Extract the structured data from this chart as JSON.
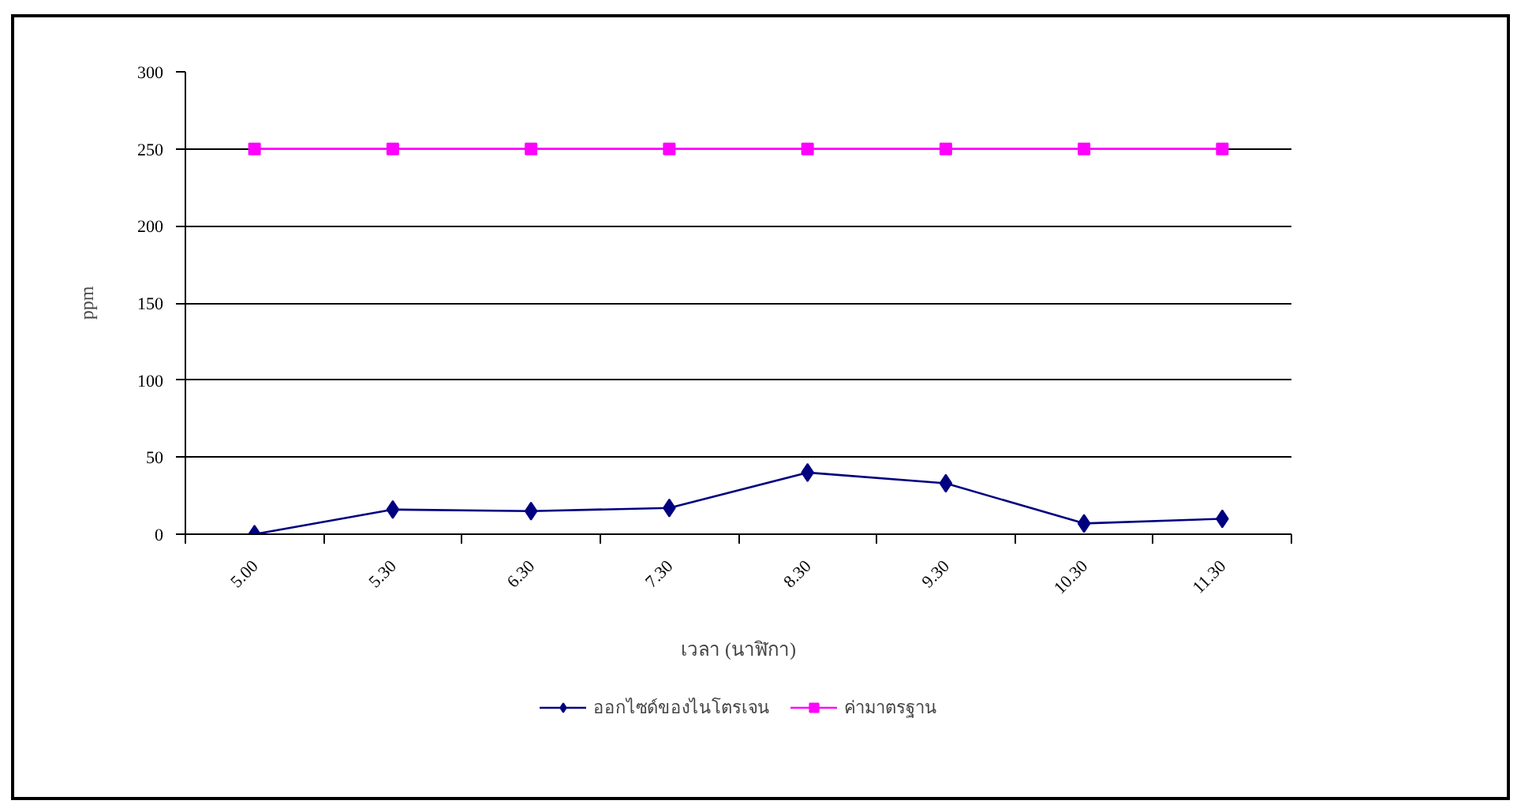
{
  "chart_data": {
    "type": "line",
    "xlabel": "เวลา (นาฬิกา)",
    "ylabel": "ppm",
    "categories": [
      "5.00",
      "5.30",
      "6.30",
      "7.30",
      "8.30",
      "9.30",
      "10.30",
      "11.30"
    ],
    "series": [
      {
        "name": "ออกไซด์ของไนโตรเจน",
        "color": "#000080",
        "marker": "diamond",
        "values": [
          0,
          16,
          15,
          17,
          40,
          33,
          7,
          10
        ]
      },
      {
        "name": "ค่ามาตรฐาน",
        "color": "#ff00ff",
        "marker": "square",
        "values": [
          250,
          250,
          250,
          250,
          250,
          250,
          250,
          250
        ]
      }
    ],
    "ylim": [
      0,
      300
    ],
    "yticks": [
      0,
      50,
      100,
      150,
      200,
      250,
      300
    ],
    "grid": "y",
    "legend": "bottom",
    "line_style": "solid"
  }
}
